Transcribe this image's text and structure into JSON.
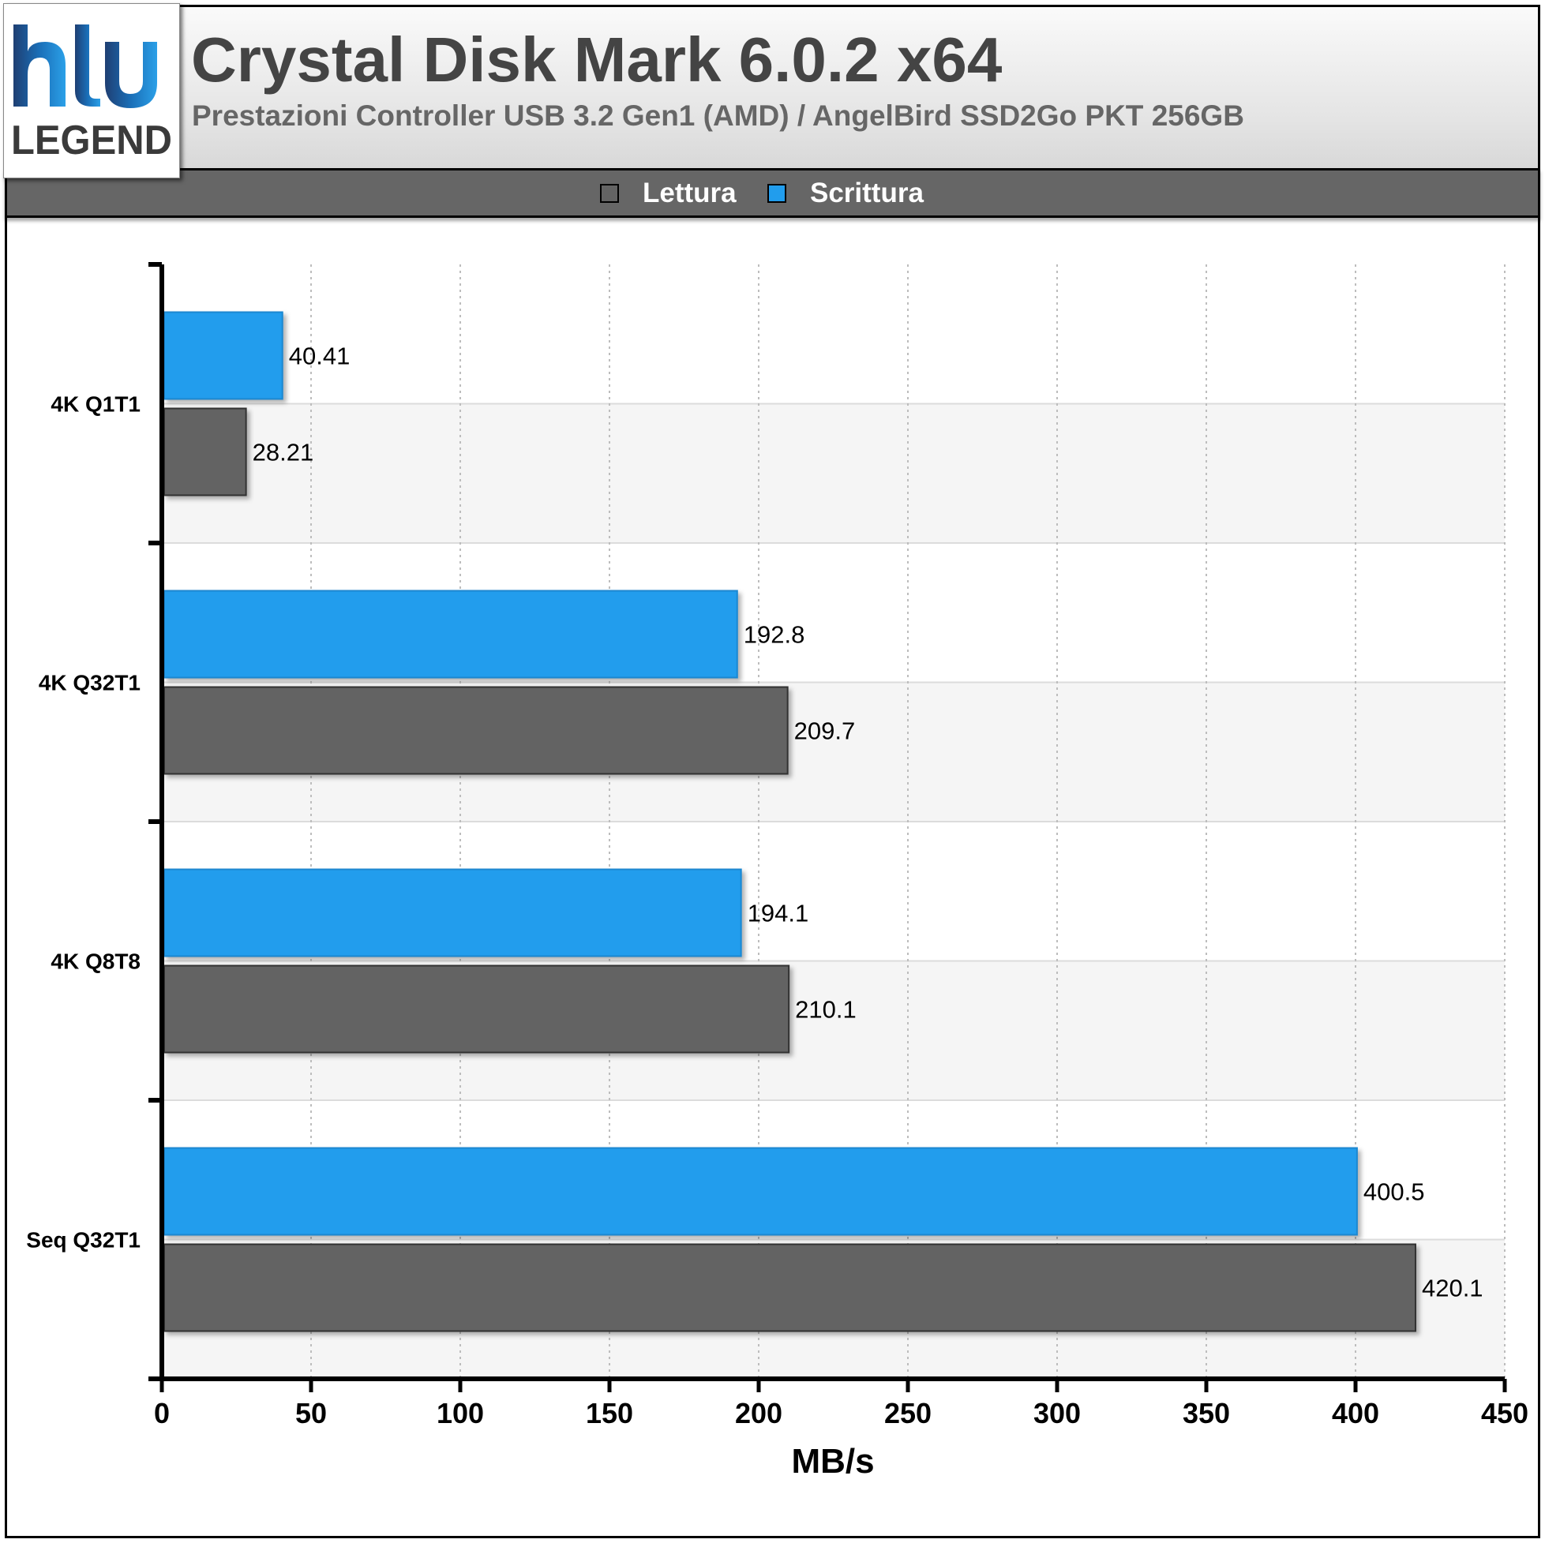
{
  "brand": {
    "logo_text": "LEGEND",
    "colors": {
      "logo_dark": "#1f3f73",
      "logo_mid": "#1a6fb8",
      "logo_light": "#2ba0e8"
    }
  },
  "header": {
    "title": "Crystal Disk Mark 6.0.2 x64",
    "subtitle": "Prestazioni Controller USB 3.2 Gen1 (AMD) / AngelBird SSD2Go PKT 256GB"
  },
  "chart_data": {
    "type": "bar",
    "orientation": "horizontal",
    "title": "Crystal Disk Mark 6.0.2 x64",
    "subtitle": "Prestazioni Controller USB 3.2 Gen1 (AMD) / AngelBird SSD2Go PKT 256GB",
    "xlabel": "MB/s",
    "ylabel": "",
    "xlim": [
      0,
      450
    ],
    "xticks": [
      0,
      50,
      100,
      150,
      200,
      250,
      300,
      350,
      400,
      450
    ],
    "grid": true,
    "legend_position": "top-center",
    "categories": [
      "4K Q1T1",
      "4K Q32T1",
      "4K Q8T8",
      "Seq Q32T1"
    ],
    "series": [
      {
        "name": "Lettura",
        "color": "#636363",
        "values": [
          28.21,
          209.7,
          210.1,
          420.1
        ],
        "labels": [
          "28.21",
          "209.7",
          "210.1",
          "420.1"
        ]
      },
      {
        "name": "Scrittura",
        "color": "#219ded",
        "values": [
          40.41,
          192.8,
          194.1,
          400.5
        ],
        "labels": [
          "40.41",
          "192.8",
          "194.1",
          "400.5"
        ]
      }
    ]
  }
}
